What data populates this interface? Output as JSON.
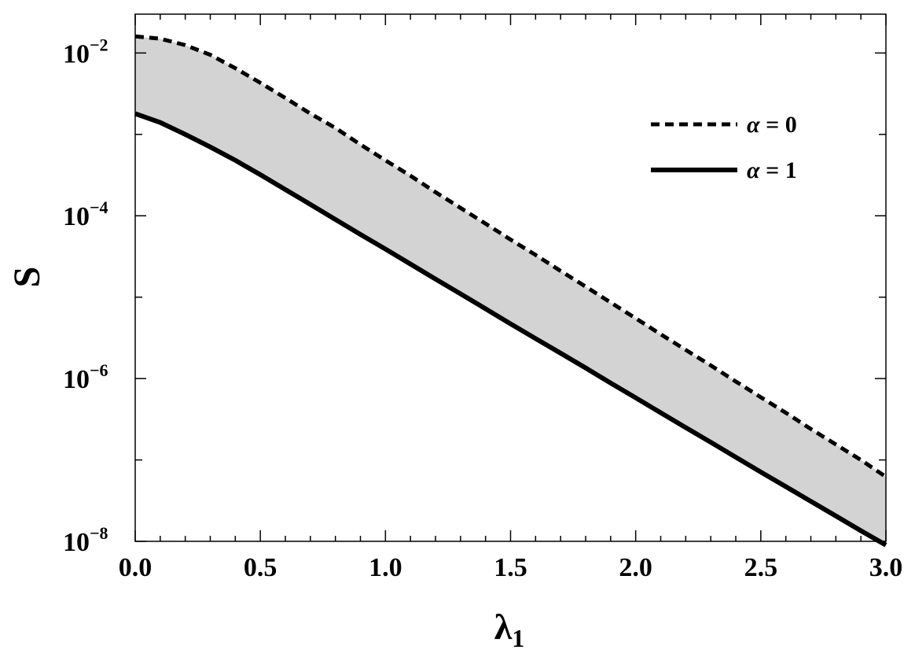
{
  "chart_data": {
    "type": "line",
    "xlabel": "λ",
    "xlabel_sub": "1",
    "ylabel": "S",
    "xlim": [
      0,
      3
    ],
    "ylim": [
      1e-08,
      0.03
    ],
    "y_scale": "log",
    "x_ticks": [
      "0.0",
      "0.5",
      "1.0",
      "1.5",
      "2.0",
      "2.5",
      "3.0"
    ],
    "y_ticks": [
      {
        "base": "10",
        "exp": "−2"
      },
      {
        "base": "10",
        "exp": "−4"
      },
      {
        "base": "10",
        "exp": "−6"
      },
      {
        "base": "10",
        "exp": "−8"
      }
    ],
    "series": [
      {
        "name": "α = 0",
        "style": "dashed",
        "x": [
          0.0,
          0.1,
          0.2,
          0.3,
          0.4,
          0.5,
          0.6,
          0.7,
          0.8,
          0.9,
          1.0,
          1.1,
          1.2,
          1.3,
          1.4,
          1.5,
          1.6,
          1.7,
          1.8,
          1.9,
          2.0,
          2.1,
          2.2,
          2.3,
          2.4,
          2.5,
          2.6,
          2.7,
          2.8,
          2.9,
          3.0
        ],
        "y": [
          0.016,
          0.015,
          0.0125,
          0.0095,
          0.0065,
          0.0043,
          0.0028,
          0.0018,
          0.0012,
          0.00075,
          0.00048,
          0.00031,
          0.000195,
          0.000125,
          8e-05,
          5.1e-05,
          3.3e-05,
          2.1e-05,
          1.35e-05,
          8.6e-06,
          5.5e-06,
          3.5e-06,
          2.25e-06,
          1.45e-06,
          9.2e-07,
          5.9e-07,
          3.8e-07,
          2.4e-07,
          1.55e-07,
          1e-07,
          6.2e-08
        ]
      },
      {
        "name": "α = 1",
        "style": "solid",
        "x": [
          0.0,
          0.1,
          0.2,
          0.3,
          0.4,
          0.5,
          0.6,
          0.7,
          0.8,
          0.9,
          1.0,
          1.1,
          1.2,
          1.3,
          1.4,
          1.5,
          1.6,
          1.7,
          1.8,
          1.9,
          2.0,
          2.1,
          2.2,
          2.3,
          2.4,
          2.5,
          2.6,
          2.7,
          2.8,
          2.9,
          3.0
        ],
        "y": [
          0.0018,
          0.0014,
          0.001,
          0.0007,
          0.00048,
          0.00032,
          0.00021,
          0.000138,
          9e-05,
          5.9e-05,
          3.9e-05,
          2.55e-05,
          1.67e-05,
          1.1e-05,
          7.2e-06,
          4.7e-06,
          3.1e-06,
          2.05e-06,
          1.35e-06,
          8.8e-07,
          5.8e-07,
          3.8e-07,
          2.5e-07,
          1.65e-07,
          1.08e-07,
          7.1e-08,
          4.7e-08,
          3.1e-08,
          2.05e-08,
          1.35e-08,
          9e-09
        ]
      }
    ],
    "fill_between": {
      "upper": "α = 0",
      "lower": "α = 1",
      "color": "#d3d3d3"
    },
    "legend": {
      "placement": "top-right",
      "entries": [
        {
          "symbol": "α",
          "text": " = 0",
          "style": "dashed"
        },
        {
          "symbol": "α",
          "text": " = 1",
          "style": "solid"
        }
      ]
    },
    "grid": false,
    "colors": {
      "line": "#000000",
      "fill": "#d3d3d3",
      "frame": "#000000"
    }
  }
}
